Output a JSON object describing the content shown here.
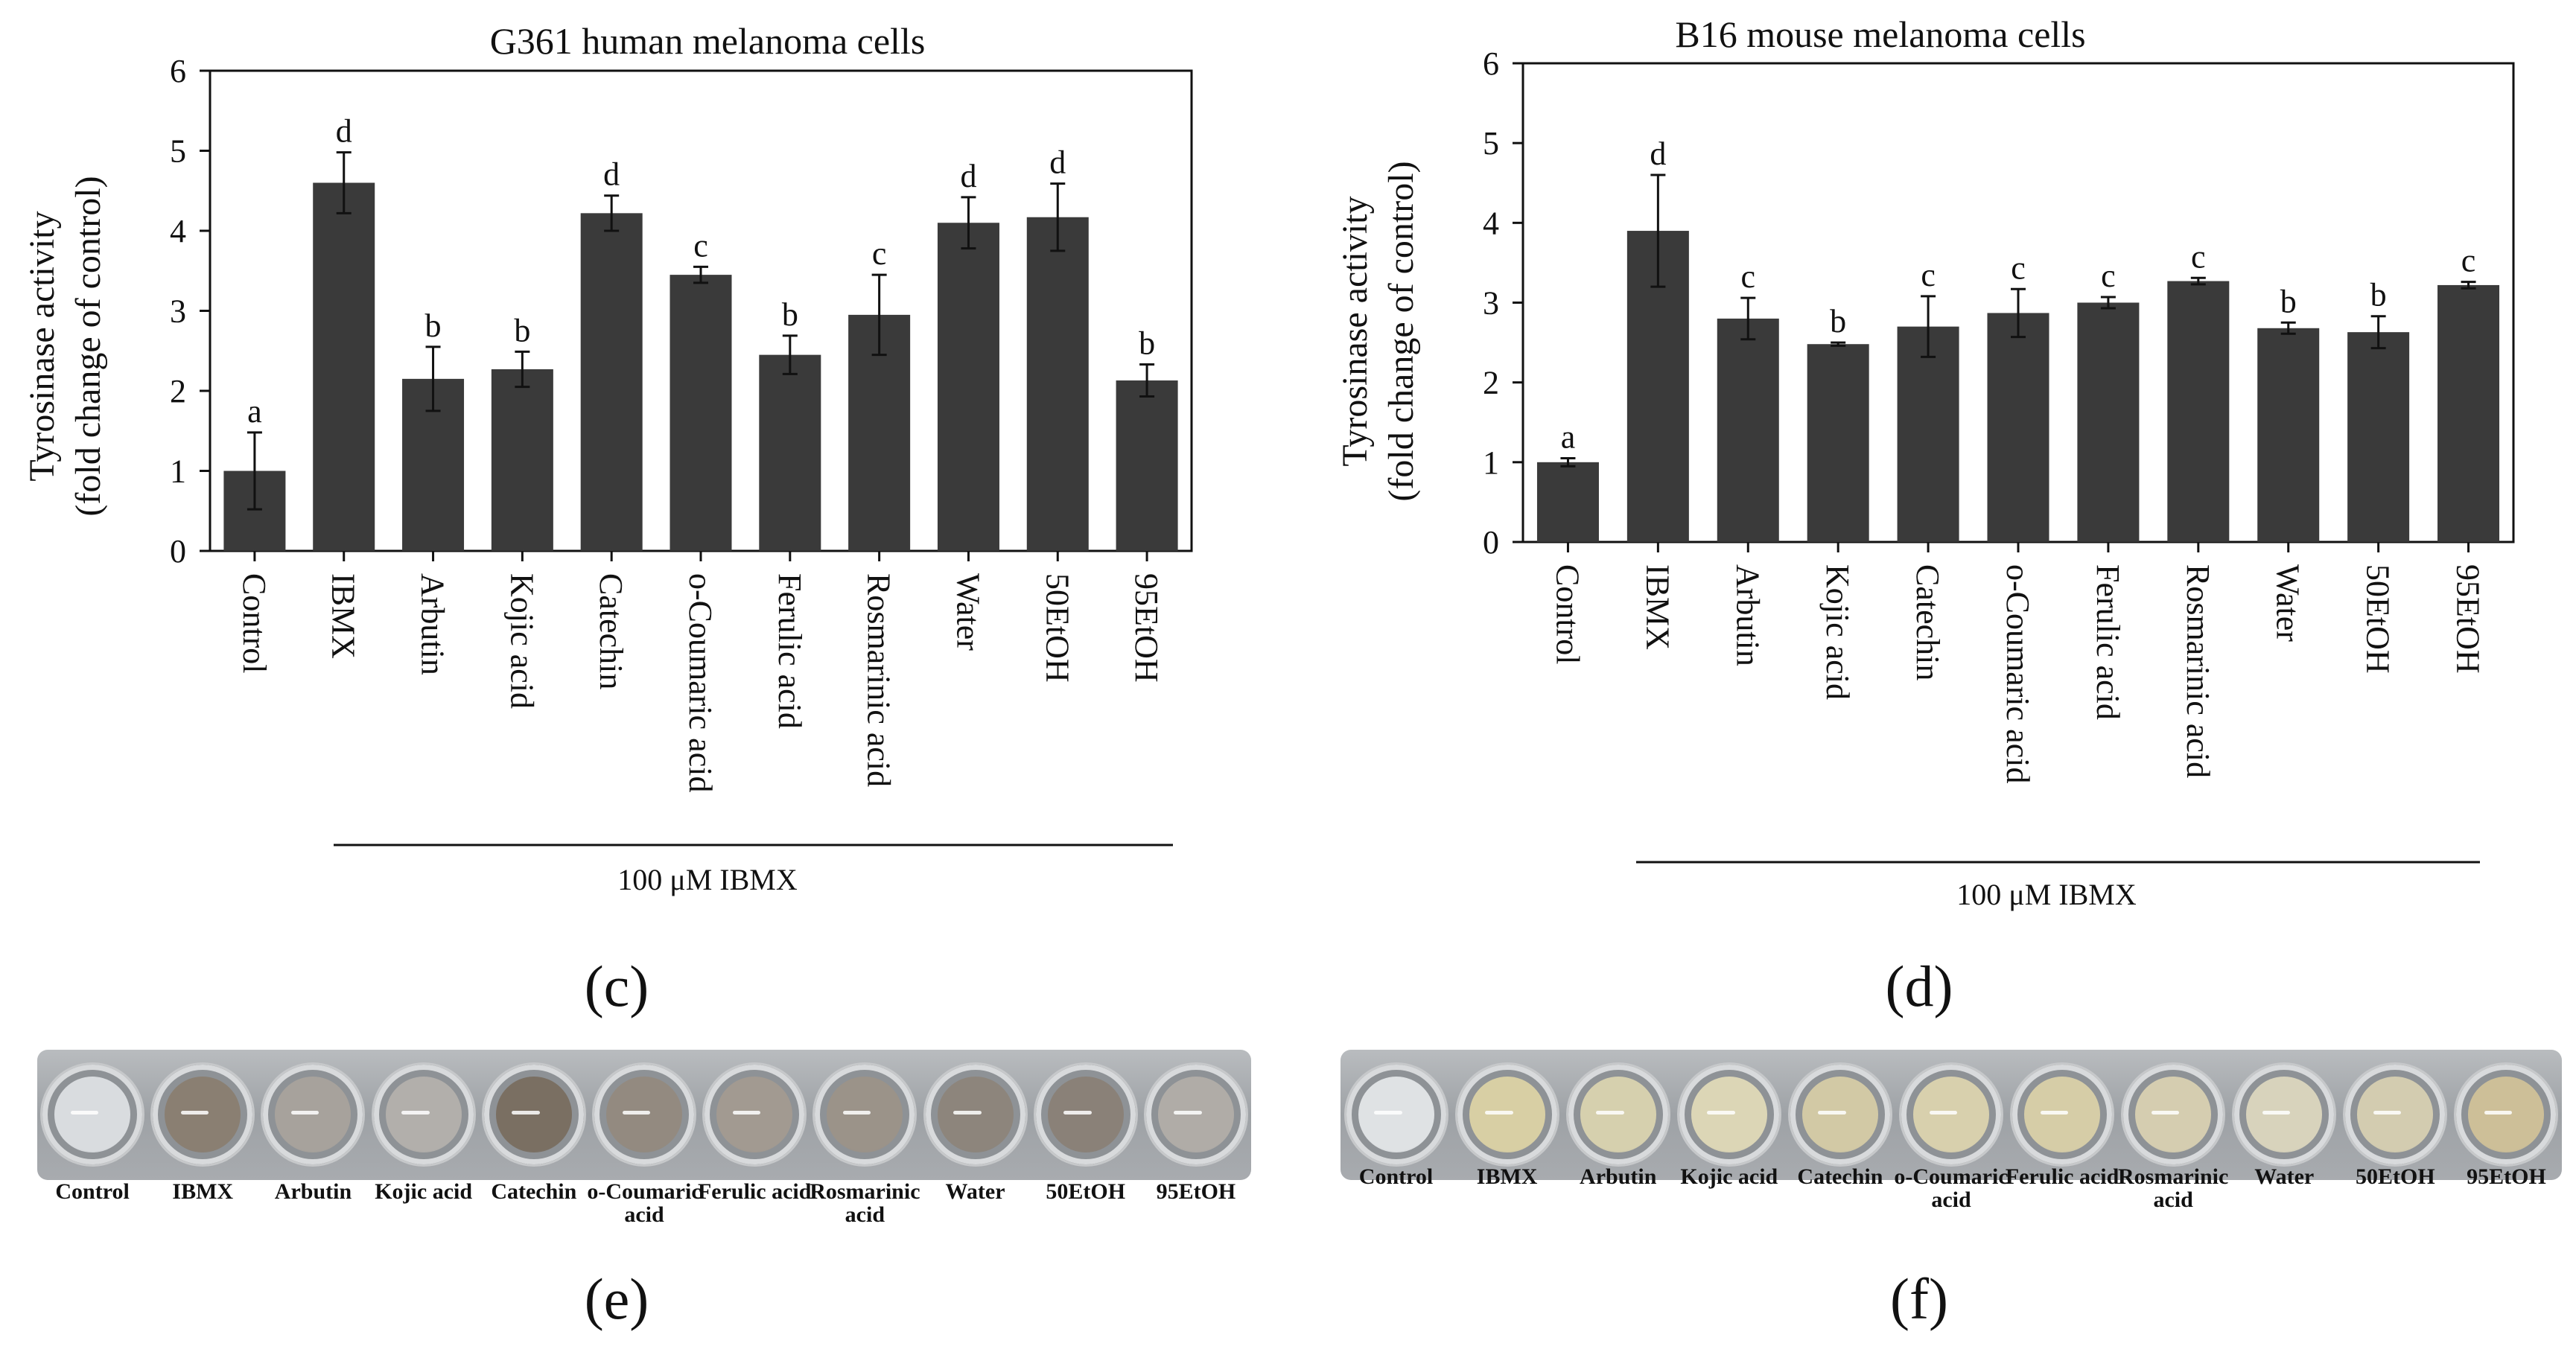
{
  "chart_data": [
    {
      "type": "bar",
      "panel": "c",
      "title": "G361 human melanoma cells",
      "ylabel_line1": "Tyrosinase activity",
      "ylabel_line2": "(fold change of control)",
      "xlabel": "",
      "ylim": [
        0,
        6
      ],
      "yticks": [
        0,
        1,
        2,
        3,
        4,
        5,
        6
      ],
      "categories": [
        "Control",
        "IBMX",
        "Arbutin",
        "Kojic acid",
        "Catechin",
        "o-Coumaric acid",
        "Ferulic acid",
        "Rosmarinic acid",
        "Water",
        "50EtOH",
        "95EtOH"
      ],
      "values": [
        1.0,
        4.6,
        2.15,
        2.27,
        4.22,
        3.45,
        2.45,
        2.95,
        4.1,
        4.17,
        2.13
      ],
      "errors": [
        0.48,
        0.38,
        0.4,
        0.22,
        0.22,
        0.1,
        0.24,
        0.5,
        0.32,
        0.42,
        0.2
      ],
      "significance": [
        "a",
        "d",
        "b",
        "b",
        "d",
        "c",
        "b",
        "c",
        "d",
        "d",
        "b"
      ],
      "bracket_label": "100 μM IBMX",
      "bar_color": "#3a3a3a"
    },
    {
      "type": "bar",
      "panel": "d",
      "title": "B16 mouse melanoma cells",
      "ylabel_line1": "Tyrosinase activity",
      "ylabel_line2": "(fold change of control)",
      "xlabel": "",
      "ylim": [
        0,
        6
      ],
      "yticks": [
        0,
        1,
        2,
        3,
        4,
        5,
        6
      ],
      "categories": [
        "Control",
        "IBMX",
        "Arbutin",
        "Kojic acid",
        "Catechin",
        "o-Coumaric acid",
        "Ferulic acid",
        "Rosmarinic acid",
        "Water",
        "50EtOH",
        "95EtOH"
      ],
      "values": [
        1.0,
        3.9,
        2.8,
        2.48,
        2.7,
        2.87,
        3.0,
        3.27,
        2.68,
        2.63,
        3.22
      ],
      "errors": [
        0.05,
        0.7,
        0.26,
        0.02,
        0.38,
        0.3,
        0.07,
        0.04,
        0.07,
        0.2,
        0.04
      ],
      "significance": [
        "a",
        "d",
        "c",
        "b",
        "c",
        "c",
        "c",
        "c",
        "b",
        "b",
        "c"
      ],
      "bracket_label": "100 μM IBMX",
      "bar_color": "#3a3a3a"
    }
  ],
  "panel_labels": {
    "c": "(c)",
    "d": "(d)",
    "e": "(e)",
    "f": "(f)"
  },
  "plates": [
    {
      "panel": "e",
      "labels": [
        "Control",
        "IBMX",
        "Arbutin",
        "Kojic acid",
        "Catechin",
        "o-Coumaric acid",
        "Ferulic acid",
        "Rosmarinic acid",
        "Water",
        "50EtOH",
        "95EtOH"
      ],
      "well_colors": [
        "#d9dcdf",
        "#8a7f72",
        "#a7a29c",
        "#b2afab",
        "#7a6f62",
        "#938a80",
        "#a29a91",
        "#9b9389",
        "#8d857c",
        "#8a8178",
        "#b0aca7"
      ]
    },
    {
      "panel": "f",
      "labels": [
        "Control",
        "IBMX",
        "Arbutin",
        "Kojic acid",
        "Catechin",
        "o-Coumaric acid",
        "Ferulic acid",
        "Rosmarinic acid",
        "Water",
        "50EtOH",
        "95EtOH"
      ],
      "well_colors": [
        "#dfe2e4",
        "#d8cfa4",
        "#d6d0ae",
        "#dcd6b6",
        "#d2c9a5",
        "#d8d0ad",
        "#d6cda7",
        "#d5cdb0",
        "#d8d3bc",
        "#d3ccb0",
        "#cdbf98"
      ]
    }
  ]
}
